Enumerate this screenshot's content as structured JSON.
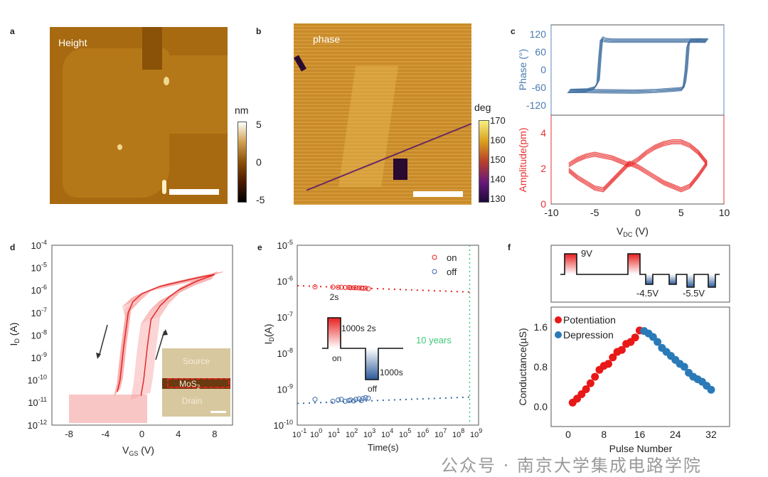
{
  "panels": {
    "a": "a",
    "b": "b",
    "c": "c",
    "d": "d",
    "e": "e",
    "f": "f"
  },
  "afm_height": {
    "label": "Height",
    "colorbar": {
      "unit": "nm",
      "ticks": [
        "5",
        "0",
        "-5"
      ],
      "range": [
        -5,
        5
      ]
    },
    "colors": [
      "#000000",
      "#5a2a00",
      "#b06c00",
      "#e0c070",
      "#ffffff"
    ]
  },
  "afm_phase": {
    "label": "phase",
    "colorbar": {
      "unit": "deg",
      "ticks": [
        "170",
        "160",
        "150",
        "140",
        "130"
      ],
      "range": [
        130,
        170
      ]
    },
    "colors": [
      "#1a0a3a",
      "#6a1a7a",
      "#b8402a",
      "#d8a020",
      "#f8f080"
    ]
  },
  "watermark": "公众号 · 南京大学集成电路学院",
  "chart_data": [
    {
      "panel": "c-top",
      "type": "line",
      "ylabel": "Phase (°)",
      "xlabel": "VDC (V)",
      "xlim": [
        -10,
        10
      ],
      "ylim": [
        -150,
        150
      ],
      "yticks": [
        "120",
        "60",
        "0",
        "-60",
        "-120"
      ],
      "xticks": [
        "-10",
        "-5",
        "0",
        "5",
        "10"
      ],
      "color": "#3a6a9e",
      "series": [
        {
          "x": [
            -8,
            -6,
            -5,
            -4.6,
            -4.4,
            -4.2,
            -3.8,
            -3,
            0,
            5,
            7,
            8
          ],
          "y": [
            -72,
            -70,
            -62,
            -40,
            40,
            105,
            100,
            98,
            98,
            98,
            99,
            98
          ]
        },
        {
          "x": [
            8,
            6,
            5.8,
            5.6,
            5.4,
            5.2,
            4,
            2,
            0,
            -4,
            -6,
            -8
          ],
          "y": [
            98,
            98,
            80,
            0,
            -45,
            -65,
            -68,
            -72,
            -74,
            -73,
            -72,
            -72
          ]
        }
      ]
    },
    {
      "panel": "c-bottom",
      "type": "line",
      "ylabel": "Amplitude(pm)",
      "xlabel": "VDC (V)",
      "xlim": [
        -10,
        10
      ],
      "ylim": [
        0,
        5
      ],
      "yticks": [
        "4",
        "2",
        "0"
      ],
      "xticks": [
        "-10",
        "-5",
        "0",
        "5",
        "10"
      ],
      "color": "#e82020",
      "series": [
        {
          "x": [
            -8,
            -7,
            -6,
            -5,
            -4,
            -3,
            -2,
            -1,
            0,
            1,
            2,
            3,
            4,
            5,
            6,
            7,
            8
          ],
          "y": [
            2.2,
            2.5,
            2.7,
            2.8,
            2.7,
            2.6,
            2.4,
            2.2,
            2.5,
            2.9,
            3.2,
            3.4,
            3.5,
            3.5,
            3.3,
            2.9,
            2.3
          ]
        },
        {
          "x": [
            8,
            7,
            6,
            5,
            4,
            3,
            2,
            1,
            0,
            -1,
            -2,
            -3,
            -4,
            -5,
            -6,
            -7,
            -8
          ],
          "y": [
            2.3,
            1.6,
            1.0,
            0.8,
            1.0,
            1.2,
            1.5,
            1.8,
            2.1,
            2.3,
            1.8,
            1.3,
            0.8,
            0.9,
            1.2,
            1.5,
            1.9
          ]
        }
      ]
    },
    {
      "panel": "d",
      "type": "line",
      "ylabel": "ID (A)",
      "xlabel": "VGS (V)",
      "xlim": [
        -9.9,
        10
      ],
      "ylim": [
        "1e-12",
        "1e-4"
      ],
      "yscale": "log",
      "yticks": [
        "-4",
        "-5",
        "-6",
        "-7",
        "-8",
        "-9",
        "-10",
        "-11",
        "-12"
      ],
      "xticks": [
        "-8",
        "-4",
        "0",
        "4",
        "8"
      ],
      "inset_labels": {
        "source": "Source",
        "channel": "MoS",
        "channel_sub": "2",
        "drain": "Drain"
      },
      "series": [
        {
          "sweep": "forward",
          "x": [
            -0.1,
            0.2,
            0.6,
            1,
            2,
            3,
            4,
            6,
            8
          ],
          "y": [
            2e-11,
            1e-10,
            3e-09,
            5e-08,
            2e-07,
            5e-07,
            1e-06,
            2.5e-06,
            5e-06
          ]
        },
        {
          "sweep": "backward",
          "x": [
            8,
            6,
            4,
            2,
            0,
            -1,
            -1.5,
            -2,
            -2.4,
            -2.7
          ],
          "y": [
            5e-06,
            3.5e-06,
            2.3e-06,
            1.5e-06,
            7e-07,
            3e-07,
            1e-07,
            3e-09,
            1e-10,
            3e-11
          ]
        }
      ]
    },
    {
      "panel": "e",
      "type": "scatter",
      "ylabel": "ID(A)",
      "xlabel": "Time(s)",
      "xscale": "log",
      "yscale": "log",
      "xlim": [
        "1e-1",
        "1e9"
      ],
      "ylim": [
        "1e-10",
        "1e-5"
      ],
      "xticks": [
        "-1",
        "0",
        "1",
        "2",
        "3",
        "4",
        "5",
        "6",
        "7",
        "8",
        "9"
      ],
      "yticks": [
        "-5",
        "-6",
        "-7",
        "-8",
        "-9",
        "-10"
      ],
      "annotation": "10 years",
      "annotation_x": "5e8",
      "pulse_labels": {
        "w1": "2s",
        "t1": "1000s",
        "w2": "2s",
        "t2": "1000s",
        "on": "on",
        "off": "off"
      },
      "series": [
        {
          "name": "on",
          "color": "#e82020",
          "fit": [
            [
              0.1,
              7.5e-07
            ],
            [
              500000000.0,
              5e-07
            ]
          ],
          "x": [
            1,
            10,
            20,
            30,
            50,
            80,
            100,
            150,
            200,
            300,
            400,
            500,
            700,
            1000
          ],
          "y": [
            7e-07,
            6.9e-07,
            6.8e-07,
            6.8e-07,
            6.7e-07,
            6.7e-07,
            6.6e-07,
            6.6e-07,
            6.6e-07,
            6.5e-07,
            6.5e-07,
            6.4e-07,
            6.4e-07,
            6.2e-07
          ]
        },
        {
          "name": "off",
          "color": "#3a6aa8",
          "fit": [
            [
              0.1,
              4e-10
            ],
            [
              500000000.0,
              6e-10
            ]
          ],
          "x": [
            1,
            10,
            20,
            30,
            50,
            80,
            100,
            150,
            200,
            300,
            400,
            500,
            700,
            1000
          ],
          "y": [
            5.2e-10,
            4.6e-10,
            5e-10,
            5.2e-10,
            4.6e-10,
            4.8e-10,
            5e-10,
            4.7e-10,
            5.2e-10,
            5.4e-10,
            4.8e-10,
            5.5e-10,
            5.8e-10,
            5.6e-10
          ]
        }
      ]
    },
    {
      "panel": "f",
      "type": "scatter",
      "ylabel": "Conductance(µS)",
      "xlabel": "Pulse Number",
      "xlim": [
        -4,
        36
      ],
      "ylim": [
        -0.4,
        2.0
      ],
      "xticks": [
        "0",
        "8",
        "16",
        "24",
        "32"
      ],
      "yticks": [
        "1.6",
        "0.8",
        "0.0"
      ],
      "pulse_labels": {
        "pos": "9V",
        "neg1": "-4.5V",
        "neg2": "-5.5V"
      },
      "series": [
        {
          "name": "Potentiation",
          "color": "#e81818",
          "x": [
            1,
            2,
            3,
            4,
            5,
            6,
            7,
            8,
            9,
            10,
            11,
            12,
            13,
            14,
            15,
            16
          ],
          "y": [
            0.08,
            0.16,
            0.25,
            0.35,
            0.47,
            0.6,
            0.74,
            0.82,
            0.86,
            0.99,
            1.1,
            1.14,
            1.26,
            1.3,
            1.39,
            1.53
          ]
        },
        {
          "name": "Depression",
          "color": "#2a7ab8",
          "x": [
            17,
            18,
            19,
            20,
            21,
            22,
            23,
            24,
            25,
            26,
            27,
            28,
            29,
            30,
            31,
            32
          ],
          "y": [
            1.52,
            1.47,
            1.4,
            1.3,
            1.18,
            1.1,
            1.02,
            0.94,
            0.86,
            0.8,
            0.68,
            0.6,
            0.55,
            0.5,
            0.42,
            0.34
          ]
        }
      ]
    }
  ]
}
